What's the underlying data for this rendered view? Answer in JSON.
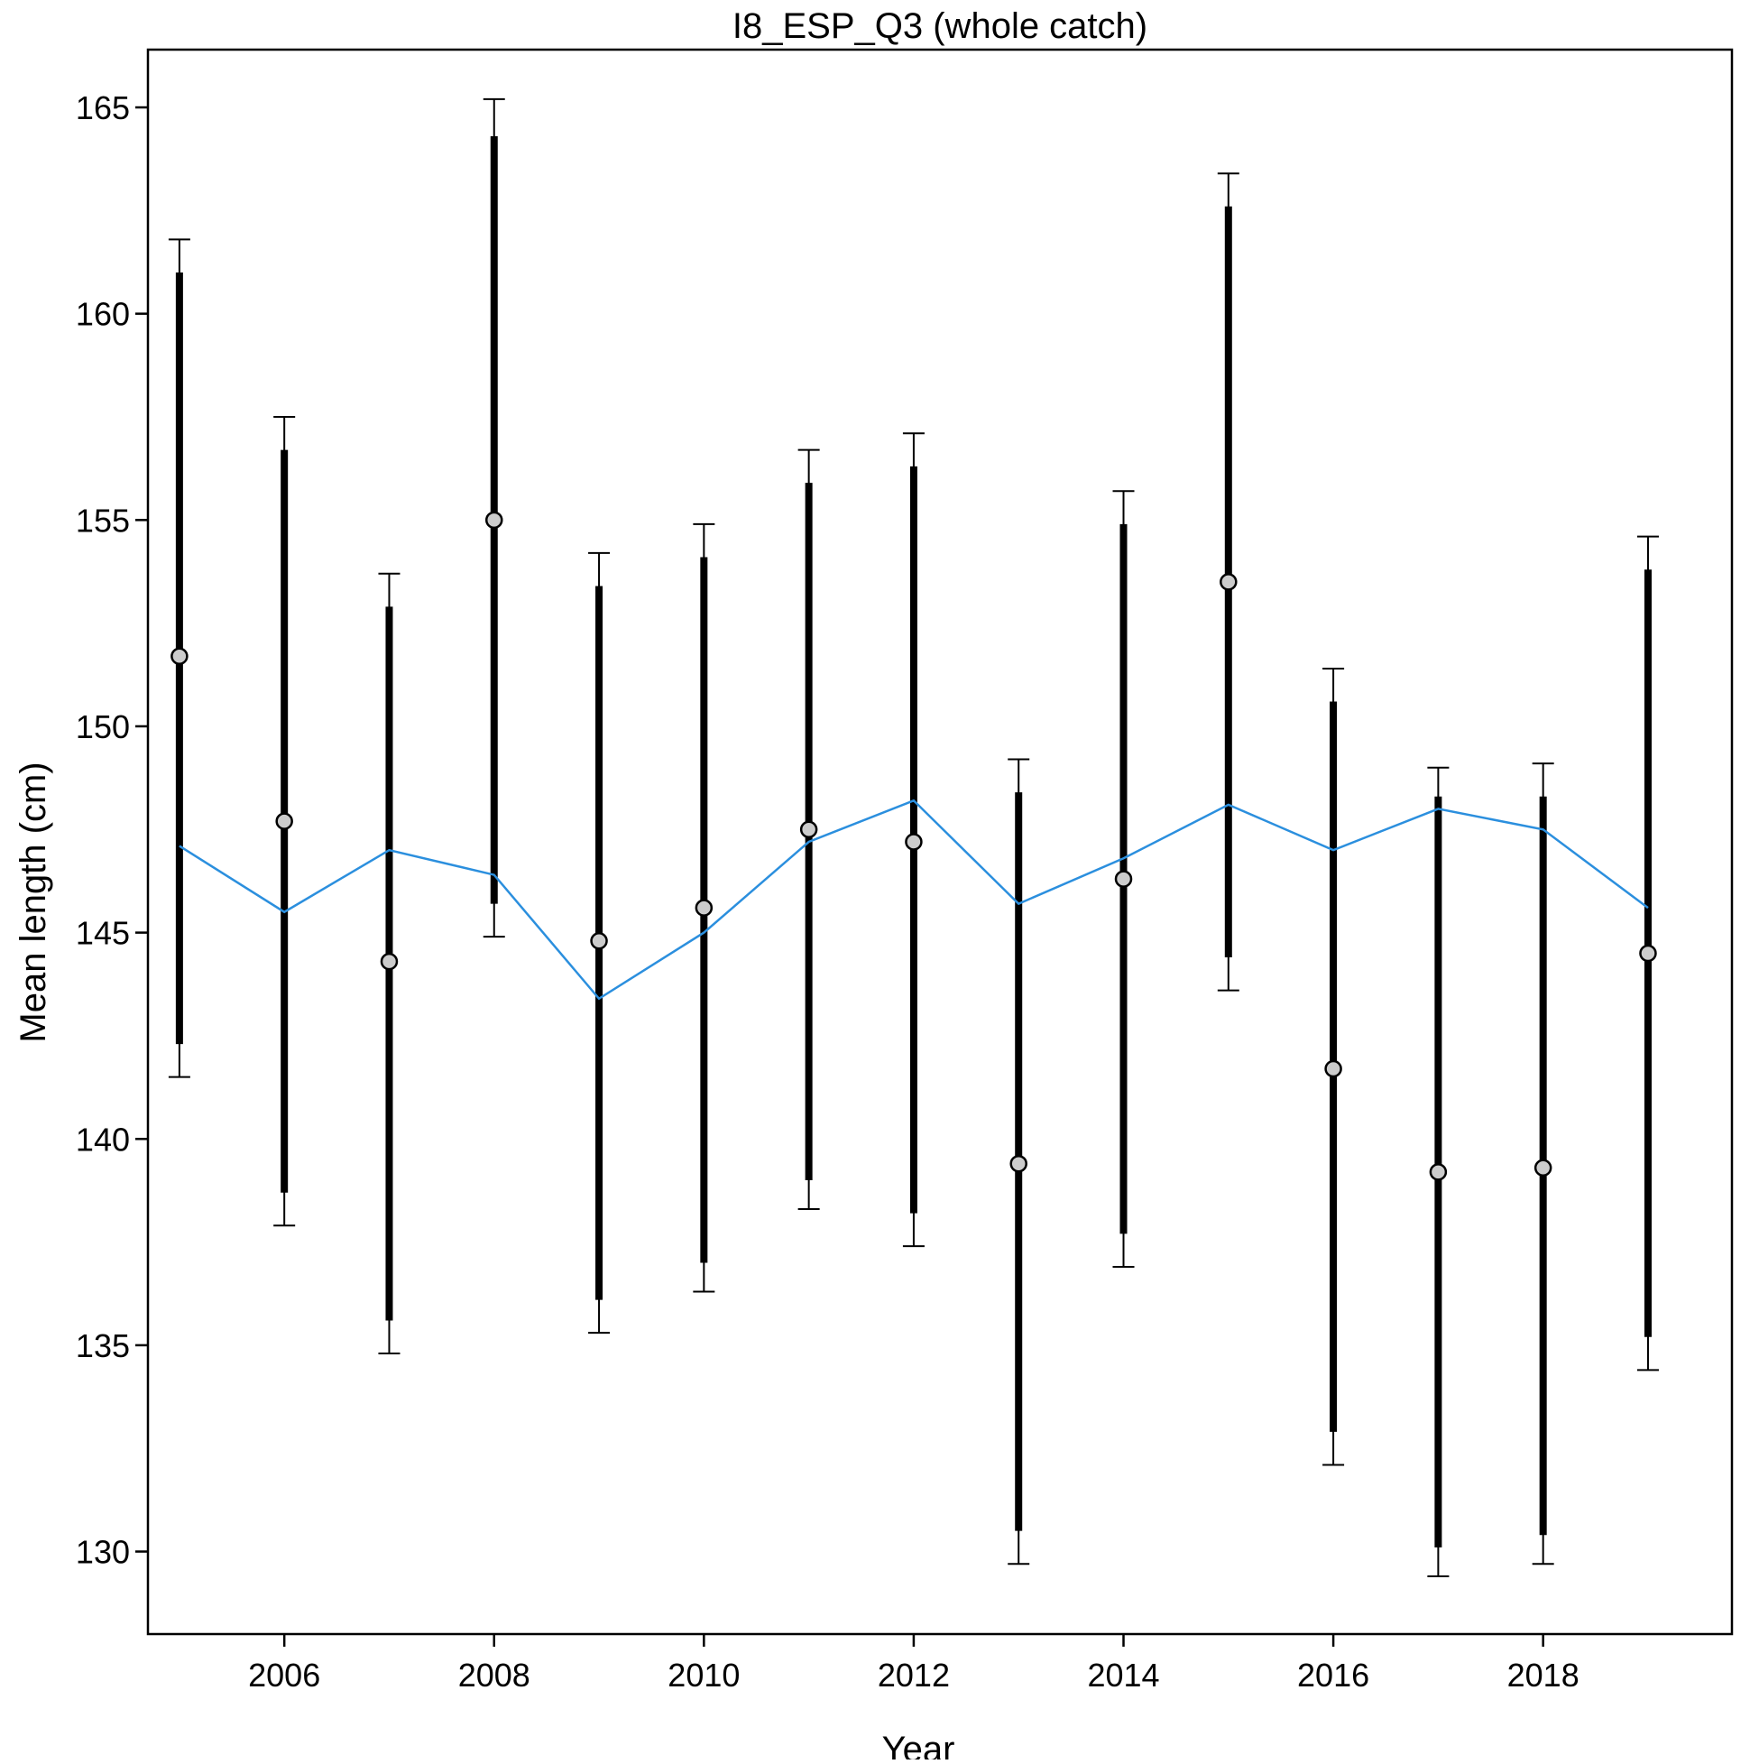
{
  "chart_data": {
    "type": "scatter",
    "title": "I8_ESP_Q3 (whole catch)",
    "xlabel": "Year",
    "ylabel": "Mean length (cm)",
    "xlim": [
      2004.7,
      2019.8
    ],
    "ylim": [
      128.0,
      166.4
    ],
    "x_ticks": [
      2006,
      2008,
      2010,
      2012,
      2014,
      2016,
      2018
    ],
    "x_tick_labels": [
      "2006",
      "2008",
      "2010",
      "2012",
      "2014",
      "2016",
      "2018"
    ],
    "y_ticks": [
      130,
      135,
      140,
      145,
      150,
      155,
      160,
      165
    ],
    "y_tick_labels": [
      "130",
      "135",
      "140",
      "145",
      "150",
      "155",
      "160",
      "165"
    ],
    "grid": false,
    "legend": "none",
    "colors": {
      "expected_line": "#2b8fde",
      "observed_point_fill": "#cccccc",
      "error_bars": "#000000"
    },
    "series": [
      {
        "kind": "observed",
        "x": [
          2005,
          2006,
          2007,
          2008,
          2009,
          2010,
          2011,
          2012,
          2013,
          2014,
          2015,
          2016,
          2017,
          2018,
          2019
        ],
        "values": [
          151.7,
          147.7,
          144.3,
          155.0,
          144.8,
          145.6,
          147.5,
          147.2,
          139.4,
          146.3,
          153.5,
          141.7,
          139.2,
          139.3,
          144.5
        ],
        "inner_lower": [
          142.3,
          138.7,
          135.6,
          145.7,
          136.1,
          137.0,
          139.0,
          138.2,
          130.5,
          137.7,
          144.4,
          132.9,
          130.1,
          130.4,
          135.2
        ],
        "inner_upper": [
          161.0,
          156.7,
          152.9,
          164.3,
          153.4,
          154.1,
          155.9,
          156.3,
          148.4,
          154.9,
          162.6,
          150.6,
          148.3,
          148.3,
          153.8
        ],
        "outer_lower": [
          141.5,
          137.9,
          134.8,
          144.9,
          135.3,
          136.3,
          138.3,
          137.4,
          129.7,
          136.9,
          143.6,
          132.1,
          129.4,
          129.7,
          134.4
        ],
        "outer_upper": [
          161.8,
          157.5,
          153.7,
          165.2,
          154.2,
          154.9,
          156.7,
          157.1,
          149.2,
          155.7,
          163.4,
          151.4,
          149.0,
          149.1,
          154.6
        ]
      },
      {
        "kind": "expected",
        "x": [
          2005,
          2006,
          2007,
          2008,
          2009,
          2010,
          2011,
          2012,
          2013,
          2014,
          2015,
          2016,
          2017,
          2018,
          2019
        ],
        "values": [
          147.1,
          145.5,
          147.0,
          146.4,
          143.4,
          145.0,
          147.2,
          148.2,
          145.7,
          146.8,
          148.1,
          147.0,
          148.0,
          147.5,
          145.6
        ]
      }
    ]
  }
}
